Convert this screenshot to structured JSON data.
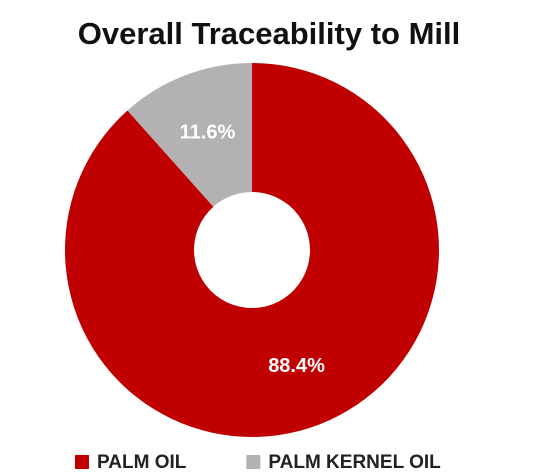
{
  "chart_data": {
    "type": "pie",
    "title": "Overall Traceability to Mill",
    "categories": [
      "PALM OIL",
      "PALM KERNEL OIL"
    ],
    "values": [
      88.4,
      11.6
    ],
    "value_labels": [
      "88.4%",
      "11.6%"
    ],
    "colors": [
      "#c00000",
      "#b3b1b1"
    ],
    "donut": true,
    "legend": "bottom"
  }
}
